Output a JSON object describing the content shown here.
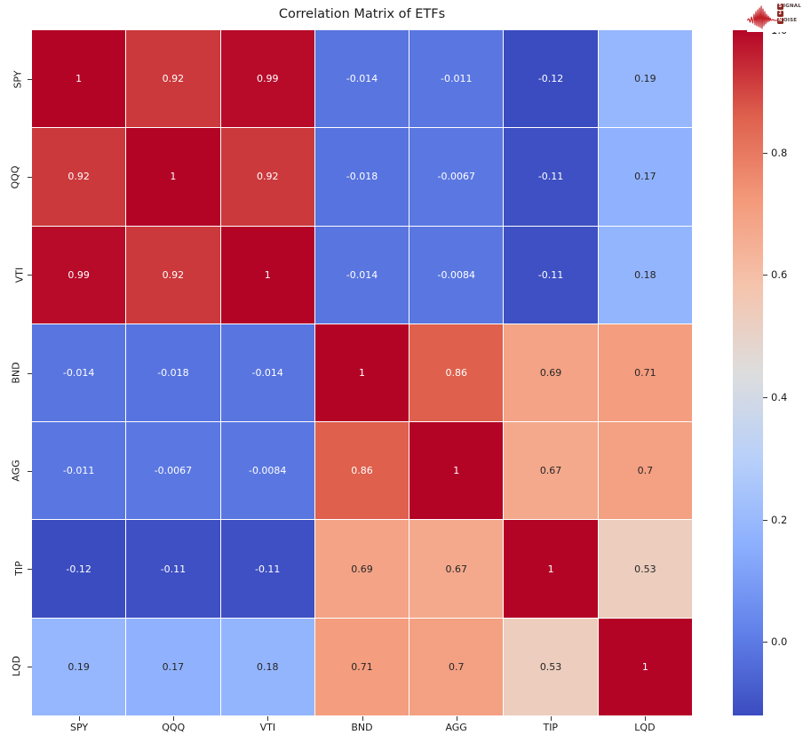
{
  "title": "Correlation Matrix of ETFs",
  "logo": {
    "rows": [
      {
        "badge": "S",
        "suffix": "IGNAL"
      },
      {
        "badge": "2",
        "suffix": ""
      },
      {
        "badge": "N",
        "suffix": "OISE"
      }
    ],
    "wave_color": "#c32128",
    "badge_color": "#8b2a23",
    "text_color": "#4a3b38"
  },
  "chart_data": {
    "type": "heatmap",
    "title": "Correlation Matrix of ETFs",
    "categories": [
      "SPY",
      "QQQ",
      "VTI",
      "BND",
      "AGG",
      "TIP",
      "LQD"
    ],
    "matrix": [
      [
        1,
        0.92,
        0.99,
        -0.014,
        -0.011,
        -0.12,
        0.19
      ],
      [
        0.92,
        1,
        0.92,
        -0.018,
        -0.0067,
        -0.11,
        0.17
      ],
      [
        0.99,
        0.92,
        1,
        -0.014,
        -0.0084,
        -0.11,
        0.18
      ],
      [
        -0.014,
        -0.018,
        -0.014,
        1,
        0.86,
        0.69,
        0.71
      ],
      [
        -0.011,
        -0.0067,
        -0.0084,
        0.86,
        1,
        0.67,
        0.7
      ],
      [
        -0.12,
        -0.11,
        -0.11,
        0.69,
        0.67,
        1,
        0.53
      ],
      [
        0.19,
        0.17,
        0.18,
        0.71,
        0.7,
        0.53,
        1
      ]
    ],
    "colormap": "coolwarm",
    "vmin": -0.12,
    "vmax": 1.0,
    "colorbar_tick_labels": [
      "1.0",
      "0.8",
      "0.6",
      "0.4",
      "0.2",
      "0.0"
    ],
    "colorbar_tick_values": [
      1.0,
      0.8,
      0.6,
      0.4,
      0.2,
      0.0
    ],
    "legend_position": "right",
    "grid_lines": "white-1px",
    "annotation_color_dark": "#262626",
    "annotation_color_light": "#ffffff"
  }
}
